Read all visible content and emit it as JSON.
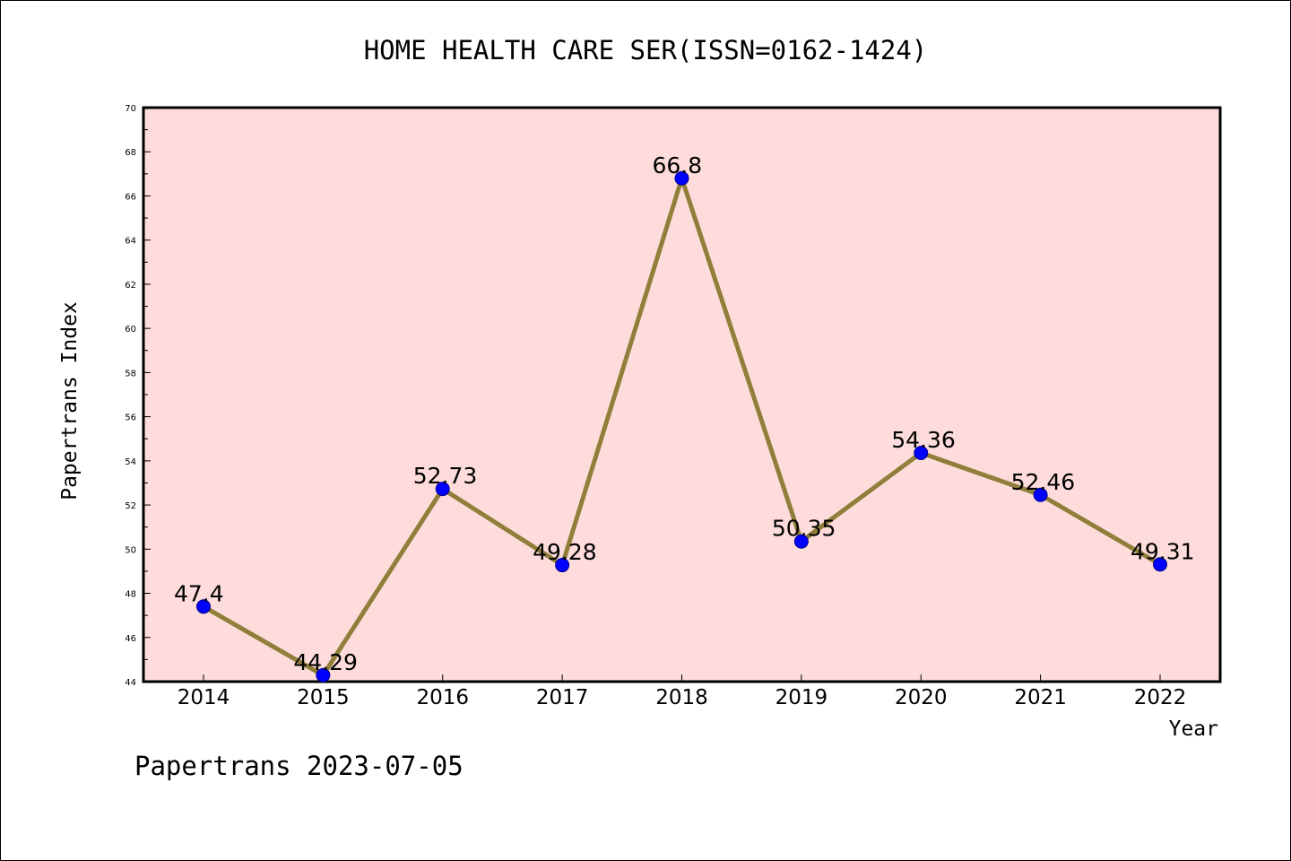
{
  "chart_data": {
    "type": "line",
    "title": "HOME HEALTH CARE SER(ISSN=0162-1424)",
    "xlabel": "Year",
    "ylabel": "Papertrans Index",
    "categories": [
      "2014",
      "2015",
      "2016",
      "2017",
      "2018",
      "2019",
      "2020",
      "2021",
      "2022"
    ],
    "series": [
      {
        "values": [
          47.4,
          44.29,
          52.73,
          49.28,
          66.8,
          50.35,
          54.36,
          52.46,
          49.31
        ],
        "labels": [
          "47.4",
          "44.29",
          "52.73",
          "49.28",
          "66.8",
          "50.35",
          "54.36",
          "52.46",
          "49.31"
        ]
      }
    ],
    "ylim": [
      44,
      70
    ],
    "yticks": [
      "44",
      "46",
      "48",
      "50",
      "52",
      "54",
      "56",
      "58",
      "60",
      "62",
      "64",
      "66",
      "68",
      "70"
    ],
    "grid": false,
    "colors": {
      "plot_background": "#ffdcdc",
      "line": "#8f7f3a",
      "marker": "#0000ff"
    }
  },
  "footer": "Papertrans 2023-07-05"
}
